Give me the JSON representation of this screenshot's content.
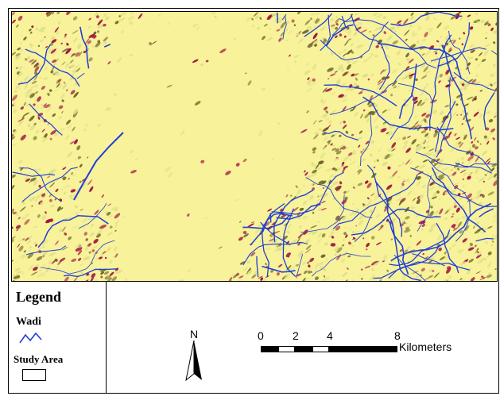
{
  "map": {
    "colors": {
      "background": "#f8f29a",
      "terrain_light": "#dfe08a",
      "terrain_olive": "#6f6a2a",
      "terrain_red": "#a21440",
      "wadi": "#1f3fd6"
    }
  },
  "legend": {
    "title": "Legend",
    "items": [
      {
        "label": "Wadi",
        "symbol": "blue-zigzag-line-icon"
      },
      {
        "label": "Study Area",
        "symbol": "rectangle-outline-icon"
      }
    ]
  },
  "north_arrow": {
    "label": "N"
  },
  "scale_bar": {
    "ticks": [
      "0",
      "2",
      "4",
      "8"
    ],
    "tick_values": [
      0,
      2,
      4,
      8
    ],
    "units": "Kilometers"
  }
}
